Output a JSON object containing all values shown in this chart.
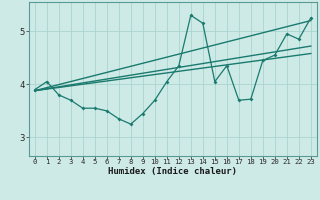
{
  "xlabel": "Humidex (Indice chaleur)",
  "bg_color": "#ceeae7",
  "line_color": "#1a7a6e",
  "grid_color": "#aad4d0",
  "spine_color": "#5a9a95",
  "xlim": [
    -0.5,
    23.5
  ],
  "ylim": [
    2.65,
    5.55
  ],
  "yticks": [
    3,
    4,
    5
  ],
  "xticks": [
    0,
    1,
    2,
    3,
    4,
    5,
    6,
    7,
    8,
    9,
    10,
    11,
    12,
    13,
    14,
    15,
    16,
    17,
    18,
    19,
    20,
    21,
    22,
    23
  ],
  "main_x": [
    0,
    1,
    2,
    3,
    4,
    5,
    6,
    7,
    8,
    9,
    10,
    11,
    12,
    13,
    14,
    15,
    16,
    17,
    18,
    19,
    20,
    21,
    22,
    23
  ],
  "main_y": [
    3.9,
    4.05,
    3.8,
    3.7,
    3.55,
    3.55,
    3.5,
    3.35,
    3.25,
    3.45,
    3.7,
    4.05,
    4.35,
    5.3,
    5.15,
    4.05,
    4.35,
    3.7,
    3.72,
    4.45,
    4.55,
    4.95,
    4.85,
    5.25
  ],
  "trend1_x": [
    0,
    23
  ],
  "trend1_y": [
    3.88,
    5.2
  ],
  "trend2_x": [
    0,
    23
  ],
  "trend2_y": [
    3.88,
    4.72
  ],
  "trend3_x": [
    0,
    23
  ],
  "trend3_y": [
    3.88,
    4.58
  ]
}
